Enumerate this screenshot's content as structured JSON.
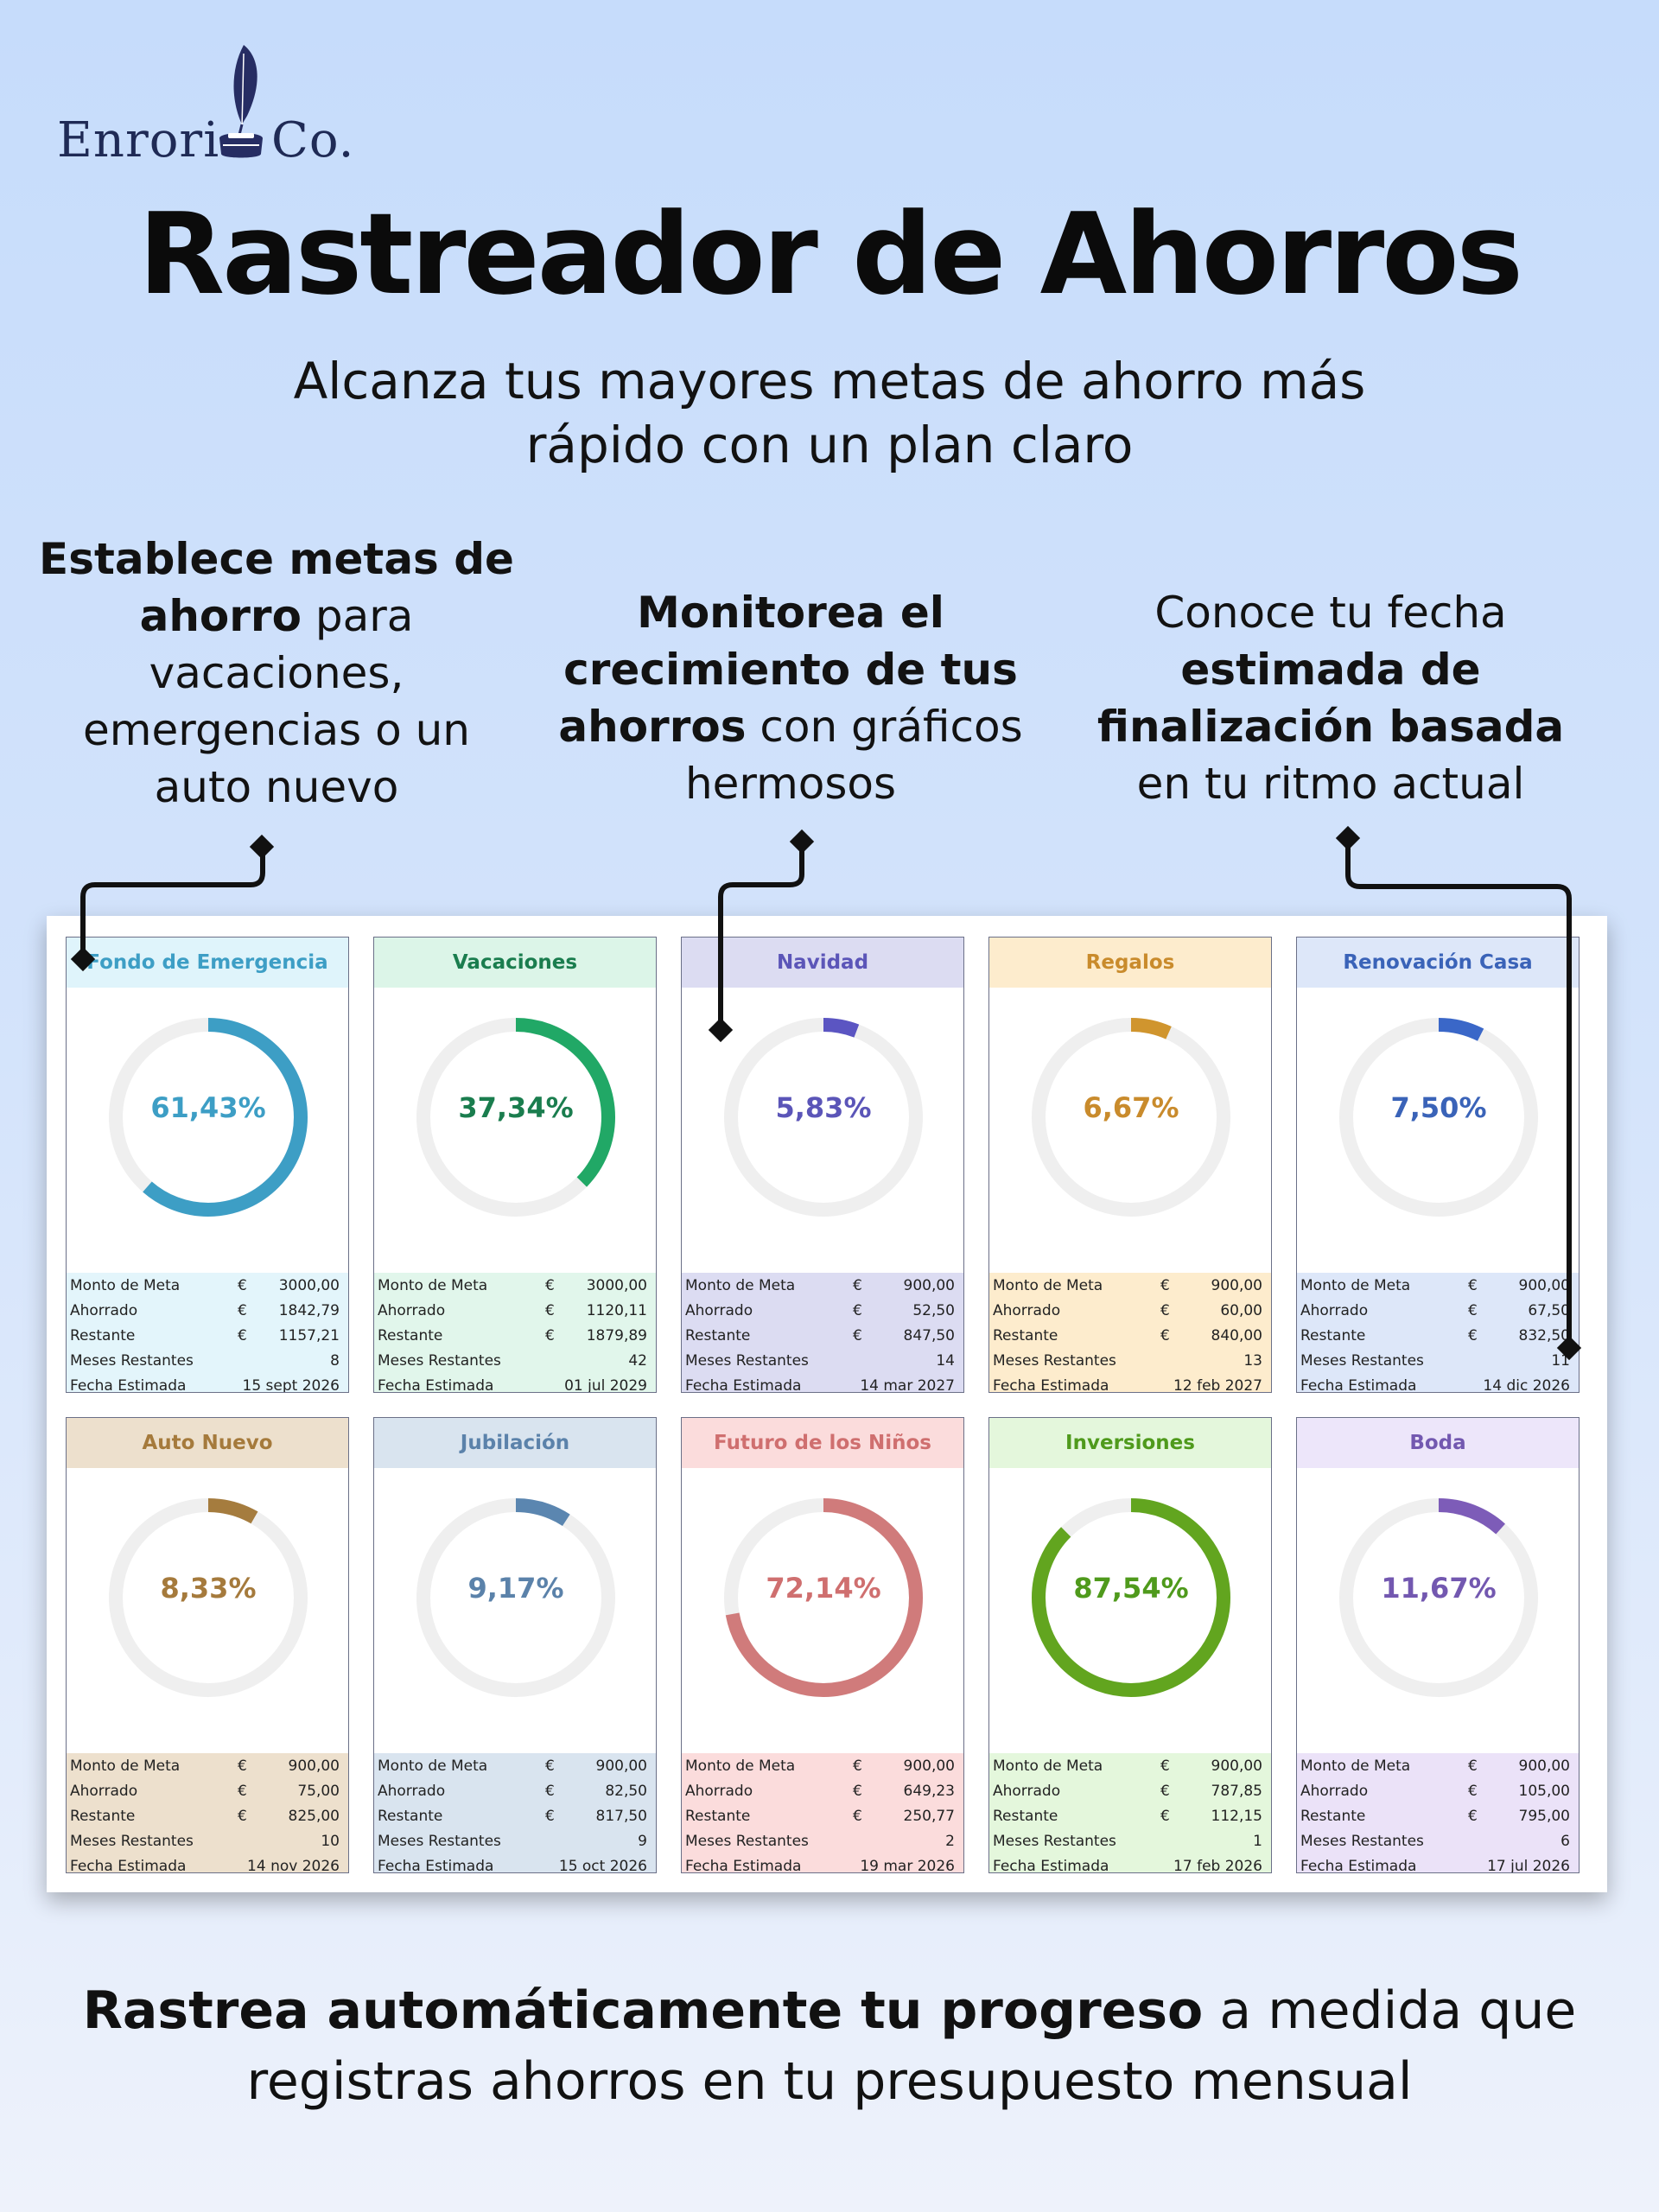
{
  "brand": {
    "name_left": "Enrori",
    "name_right": "Co.",
    "logo_icon": "quill-inkwell-icon"
  },
  "title": "Rastreador de Ahorros",
  "subtitle": "Alcanza tus mayores metas de ahorro más rápido con un plan claro",
  "features": [
    {
      "parts": [
        {
          "bold": true,
          "text": "Establece metas de ahorro"
        },
        {
          "bold": false,
          "text": " para vacaciones, emergencias o un auto nuevo"
        }
      ]
    },
    {
      "parts": [
        {
          "bold": true,
          "text": "Monitorea el crecimiento de tus ahorros"
        },
        {
          "bold": false,
          "text": " con gráficos hermosos"
        }
      ]
    },
    {
      "parts": [
        {
          "bold": false,
          "text": "Conoce tu fecha "
        },
        {
          "bold": true,
          "text": "estimada de finalización basada"
        },
        {
          "bold": false,
          "text": " en tu ritmo actual"
        }
      ]
    }
  ],
  "stat_labels": [
    "Monto de Meta",
    "Ahorrado",
    "Restante",
    "Meses Restantes",
    "Fecha Estimada"
  ],
  "currency_symbol": "€",
  "chart_data": {
    "type": "donut",
    "goals": [
      {
        "name": "Fondo de Emergencia",
        "percent": 61.43,
        "percent_label": "61,43%",
        "color": "#3d9ec5",
        "header_bg": "#dff4fb",
        "stats_bg": "#e3f5fb",
        "text_color": "#3d9ec5",
        "goal": "3000,00",
        "saved": "1842,79",
        "remaining": "1157,21",
        "months_left": "8",
        "estimated_date": "15 sept 2026"
      },
      {
        "name": "Vacaciones",
        "percent": 37.34,
        "percent_label": "37,34%",
        "color": "#21a866",
        "header_bg": "#dcf5e8",
        "stats_bg": "#e1f6eb",
        "text_color": "#1a7d4e",
        "goal": "3000,00",
        "saved": "1120,11",
        "remaining": "1879,89",
        "months_left": "42",
        "estimated_date": "01 jul 2029"
      },
      {
        "name": "Navidad",
        "percent": 5.83,
        "percent_label": "5,83%",
        "color": "#5b55c2",
        "header_bg": "#dcdcf2",
        "stats_bg": "#dcdcf2",
        "text_color": "#5b55b8",
        "goal": "900,00",
        "saved": "52,50",
        "remaining": "847,50",
        "months_left": "14",
        "estimated_date": "14 mar 2027"
      },
      {
        "name": "Regalos",
        "percent": 6.67,
        "percent_label": "6,67%",
        "color": "#d0952e",
        "header_bg": "#fdeccd",
        "stats_bg": "#fdeccd",
        "text_color": "#c98b2c",
        "goal": "900,00",
        "saved": "60,00",
        "remaining": "840,00",
        "months_left": "13",
        "estimated_date": "12 feb 2027"
      },
      {
        "name": "Renovación Casa",
        "percent": 7.5,
        "percent_label": "7,50%",
        "color": "#3a67c8",
        "header_bg": "#dde7f9",
        "stats_bg": "#dde7f9",
        "text_color": "#3a63b8",
        "goal": "900,00",
        "saved": "67,50",
        "remaining": "832,50",
        "months_left": "11",
        "estimated_date": "14 dic 2026"
      },
      {
        "name": "Auto Nuevo",
        "percent": 8.33,
        "percent_label": "8,33%",
        "color": "#a57c3e",
        "header_bg": "#ede0cd",
        "stats_bg": "#ede0cd",
        "text_color": "#a57a3c",
        "goal": "900,00",
        "saved": "75,00",
        "remaining": "825,00",
        "months_left": "10",
        "estimated_date": "14 nov 2026"
      },
      {
        "name": "Jubilación",
        "percent": 9.17,
        "percent_label": "9,17%",
        "color": "#5b86b0",
        "header_bg": "#d9e4ef",
        "stats_bg": "#d9e4ef",
        "text_color": "#5b82aa",
        "goal": "900,00",
        "saved": "82,50",
        "remaining": "817,50",
        "months_left": "9",
        "estimated_date": "15 oct 2026"
      },
      {
        "name": "Futuro de los Niños",
        "percent": 72.14,
        "percent_label": "72,14%",
        "color": "#d07b7b",
        "header_bg": "#fbdcdc",
        "stats_bg": "#fbdcdc",
        "text_color": "#cf6f6f",
        "goal": "900,00",
        "saved": "649,23",
        "remaining": "250,77",
        "months_left": "2",
        "estimated_date": "19 mar 2026"
      },
      {
        "name": "Inversiones",
        "percent": 87.54,
        "percent_label": "87,54%",
        "color": "#62a51f",
        "header_bg": "#e4f7dc",
        "stats_bg": "#e4f7dc",
        "text_color": "#4f9a1c",
        "goal": "900,00",
        "saved": "787,85",
        "remaining": "112,15",
        "months_left": "1",
        "estimated_date": "17 feb 2026"
      },
      {
        "name": "Boda",
        "percent": 11.67,
        "percent_label": "11,67%",
        "color": "#7d5cb8",
        "header_bg": "#ede6fa",
        "stats_bg": "#ebe2f8",
        "text_color": "#7358b0",
        "goal": "900,00",
        "saved": "105,00",
        "remaining": "795,00",
        "months_left": "6",
        "estimated_date": "17 jul 2026"
      }
    ]
  },
  "bottom": {
    "bold": "Rastrea automáticamente tu progreso",
    "rest": " a medida que registras ahorros en tu presupuesto mensual"
  }
}
